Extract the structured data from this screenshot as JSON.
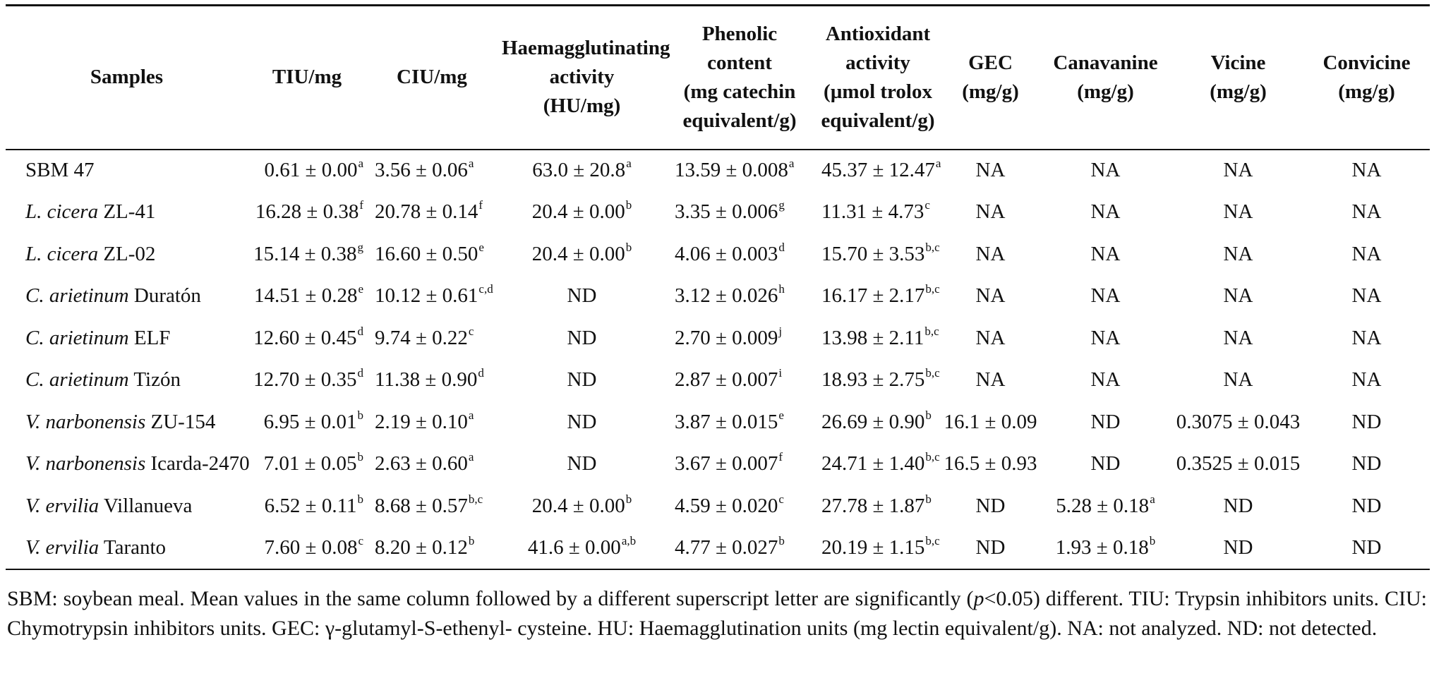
{
  "table": {
    "headers": [
      [
        "Samples"
      ],
      [
        "TIU/mg"
      ],
      [
        "CIU/mg"
      ],
      [
        "Haemagglutinating",
        "activity",
        "(HU/mg)"
      ],
      [
        "Phenolic",
        "content",
        "(mg catechin",
        "equivalent/g)"
      ],
      [
        "Antioxidant",
        "activity",
        "(µmol trolox",
        "equivalent/g)"
      ],
      [
        "GEC",
        "(mg/g)"
      ],
      [
        "Canavanine",
        "(mg/g)"
      ],
      [
        "Vicine",
        "(mg/g)"
      ],
      [
        "Convicine",
        "(mg/g)"
      ]
    ],
    "rows": [
      {
        "sample_species": "",
        "sample_variety": "SBM 47",
        "cells": [
          {
            "v": "0.61 ± 0.00",
            "s": "a"
          },
          {
            "v": "3.56 ± 0.06",
            "s": "a"
          },
          {
            "v": "63.0 ± 20.8",
            "s": "a"
          },
          {
            "v": "13.59 ± 0.008",
            "s": "a"
          },
          {
            "v": "45.37 ± 12.47",
            "s": "a"
          },
          {
            "v": "NA",
            "s": ""
          },
          {
            "v": "NA",
            "s": ""
          },
          {
            "v": "NA",
            "s": ""
          },
          {
            "v": "NA",
            "s": ""
          }
        ]
      },
      {
        "sample_species": "L. cicera",
        "sample_variety": " ZL-41",
        "cells": [
          {
            "v": "16.28 ± 0.38",
            "s": "f"
          },
          {
            "v": "20.78 ± 0.14",
            "s": "f"
          },
          {
            "v": "20.4 ± 0.00",
            "s": "b"
          },
          {
            "v": "3.35 ± 0.006",
            "s": "g"
          },
          {
            "v": "11.31 ± 4.73",
            "s": "c"
          },
          {
            "v": "NA",
            "s": ""
          },
          {
            "v": "NA",
            "s": ""
          },
          {
            "v": "NA",
            "s": ""
          },
          {
            "v": "NA",
            "s": ""
          }
        ]
      },
      {
        "sample_species": "L. cicera",
        "sample_variety": " ZL-02",
        "cells": [
          {
            "v": "15.14 ± 0.38",
            "s": "g"
          },
          {
            "v": "16.60 ± 0.50",
            "s": "e"
          },
          {
            "v": "20.4 ± 0.00",
            "s": "b"
          },
          {
            "v": "4.06 ± 0.003",
            "s": "d"
          },
          {
            "v": "15.70 ± 3.53",
            "s": "b,c"
          },
          {
            "v": "NA",
            "s": ""
          },
          {
            "v": "NA",
            "s": ""
          },
          {
            "v": "NA",
            "s": ""
          },
          {
            "v": "NA",
            "s": ""
          }
        ]
      },
      {
        "sample_species": "C. arietinum",
        "sample_variety": " Duratón",
        "cells": [
          {
            "v": "14.51 ± 0.28",
            "s": "e"
          },
          {
            "v": "10.12 ± 0.61",
            "s": "c,d"
          },
          {
            "v": "ND",
            "s": ""
          },
          {
            "v": "3.12 ± 0.026",
            "s": "h"
          },
          {
            "v": "16.17 ± 2.17",
            "s": "b,c"
          },
          {
            "v": "NA",
            "s": ""
          },
          {
            "v": "NA",
            "s": ""
          },
          {
            "v": "NA",
            "s": ""
          },
          {
            "v": "NA",
            "s": ""
          }
        ]
      },
      {
        "sample_species": "C. arietinum",
        "sample_variety": " ELF",
        "cells": [
          {
            "v": "12.60 ± 0.45",
            "s": "d"
          },
          {
            "v": "9.74 ± 0.22",
            "s": "c"
          },
          {
            "v": "ND",
            "s": ""
          },
          {
            "v": "2.70 ± 0.009",
            "s": "j"
          },
          {
            "v": "13.98 ± 2.11",
            "s": "b,c"
          },
          {
            "v": "NA",
            "s": ""
          },
          {
            "v": "NA",
            "s": ""
          },
          {
            "v": "NA",
            "s": ""
          },
          {
            "v": "NA",
            "s": ""
          }
        ]
      },
      {
        "sample_species": "C. arietinum",
        "sample_variety": " Tizón",
        "cells": [
          {
            "v": "12.70 ± 0.35",
            "s": "d"
          },
          {
            "v": "11.38 ± 0.90",
            "s": "d"
          },
          {
            "v": "ND",
            "s": ""
          },
          {
            "v": "2.87 ± 0.007",
            "s": "i"
          },
          {
            "v": "18.93 ± 2.75",
            "s": "b,c"
          },
          {
            "v": "NA",
            "s": ""
          },
          {
            "v": "NA",
            "s": ""
          },
          {
            "v": "NA",
            "s": ""
          },
          {
            "v": "NA",
            "s": ""
          }
        ]
      },
      {
        "sample_species": "V. narbonensis",
        "sample_variety": " ZU-154",
        "cells": [
          {
            "v": "6.95 ± 0.01",
            "s": "b"
          },
          {
            "v": "2.19 ± 0.10",
            "s": "a"
          },
          {
            "v": "ND",
            "s": ""
          },
          {
            "v": "3.87 ± 0.015",
            "s": "e"
          },
          {
            "v": "26.69 ± 0.90",
            "s": "b"
          },
          {
            "v": "16.1 ± 0.09",
            "s": ""
          },
          {
            "v": "ND",
            "s": ""
          },
          {
            "v": "0.3075 ± 0.043",
            "s": ""
          },
          {
            "v": "ND",
            "s": ""
          }
        ]
      },
      {
        "sample_species": "V. narbonensis",
        "sample_variety": " Icarda-2470",
        "cells": [
          {
            "v": "7.01 ± 0.05",
            "s": "b"
          },
          {
            "v": "2.63 ± 0.60",
            "s": "a"
          },
          {
            "v": "ND",
            "s": ""
          },
          {
            "v": "3.67 ± 0.007",
            "s": "f"
          },
          {
            "v": "24.71 ± 1.40",
            "s": "b,c"
          },
          {
            "v": "16.5 ± 0.93",
            "s": ""
          },
          {
            "v": "ND",
            "s": ""
          },
          {
            "v": "0.3525 ± 0.015",
            "s": ""
          },
          {
            "v": "ND",
            "s": ""
          }
        ]
      },
      {
        "sample_species": "V. ervilia",
        "sample_variety": " Villanueva",
        "cells": [
          {
            "v": "6.52 ± 0.11",
            "s": "b"
          },
          {
            "v": "8.68 ± 0.57",
            "s": "b,c"
          },
          {
            "v": "20.4 ± 0.00",
            "s": "b"
          },
          {
            "v": "4.59 ± 0.020",
            "s": "c"
          },
          {
            "v": "27.78 ± 1.87",
            "s": "b"
          },
          {
            "v": "ND",
            "s": ""
          },
          {
            "v": "5.28 ± 0.18",
            "s": "a"
          },
          {
            "v": "ND",
            "s": ""
          },
          {
            "v": "ND",
            "s": ""
          }
        ]
      },
      {
        "sample_species": "V. ervilia",
        "sample_variety": " Taranto",
        "cells": [
          {
            "v": "7.60 ± 0.08",
            "s": "c"
          },
          {
            "v": "8.20 ± 0.12",
            "s": "b"
          },
          {
            "v": "41.6 ± 0.00",
            "s": "a,b"
          },
          {
            "v": "4.77 ± 0.027",
            "s": "b"
          },
          {
            "v": "20.19 ± 1.15",
            "s": "b,c"
          },
          {
            "v": "ND",
            "s": ""
          },
          {
            "v": "1.93 ± 0.18",
            "s": "b"
          },
          {
            "v": "ND",
            "s": ""
          },
          {
            "v": "ND",
            "s": ""
          }
        ]
      }
    ]
  },
  "note": {
    "part1": "SBM: soybean meal. Mean values in the same column followed by a different superscript letter are significantly (",
    "p_symbol": "p",
    "part2": "<0.05) different. TIU: Trypsin inhibitors units. CIU: Chymotrypsin inhibitors units. GEC: γ-glutamyl-S-ethenyl- cysteine. HU: Haemagglutination units (mg lectin equivalent/g). NA: not analyzed. ND: not detected."
  }
}
